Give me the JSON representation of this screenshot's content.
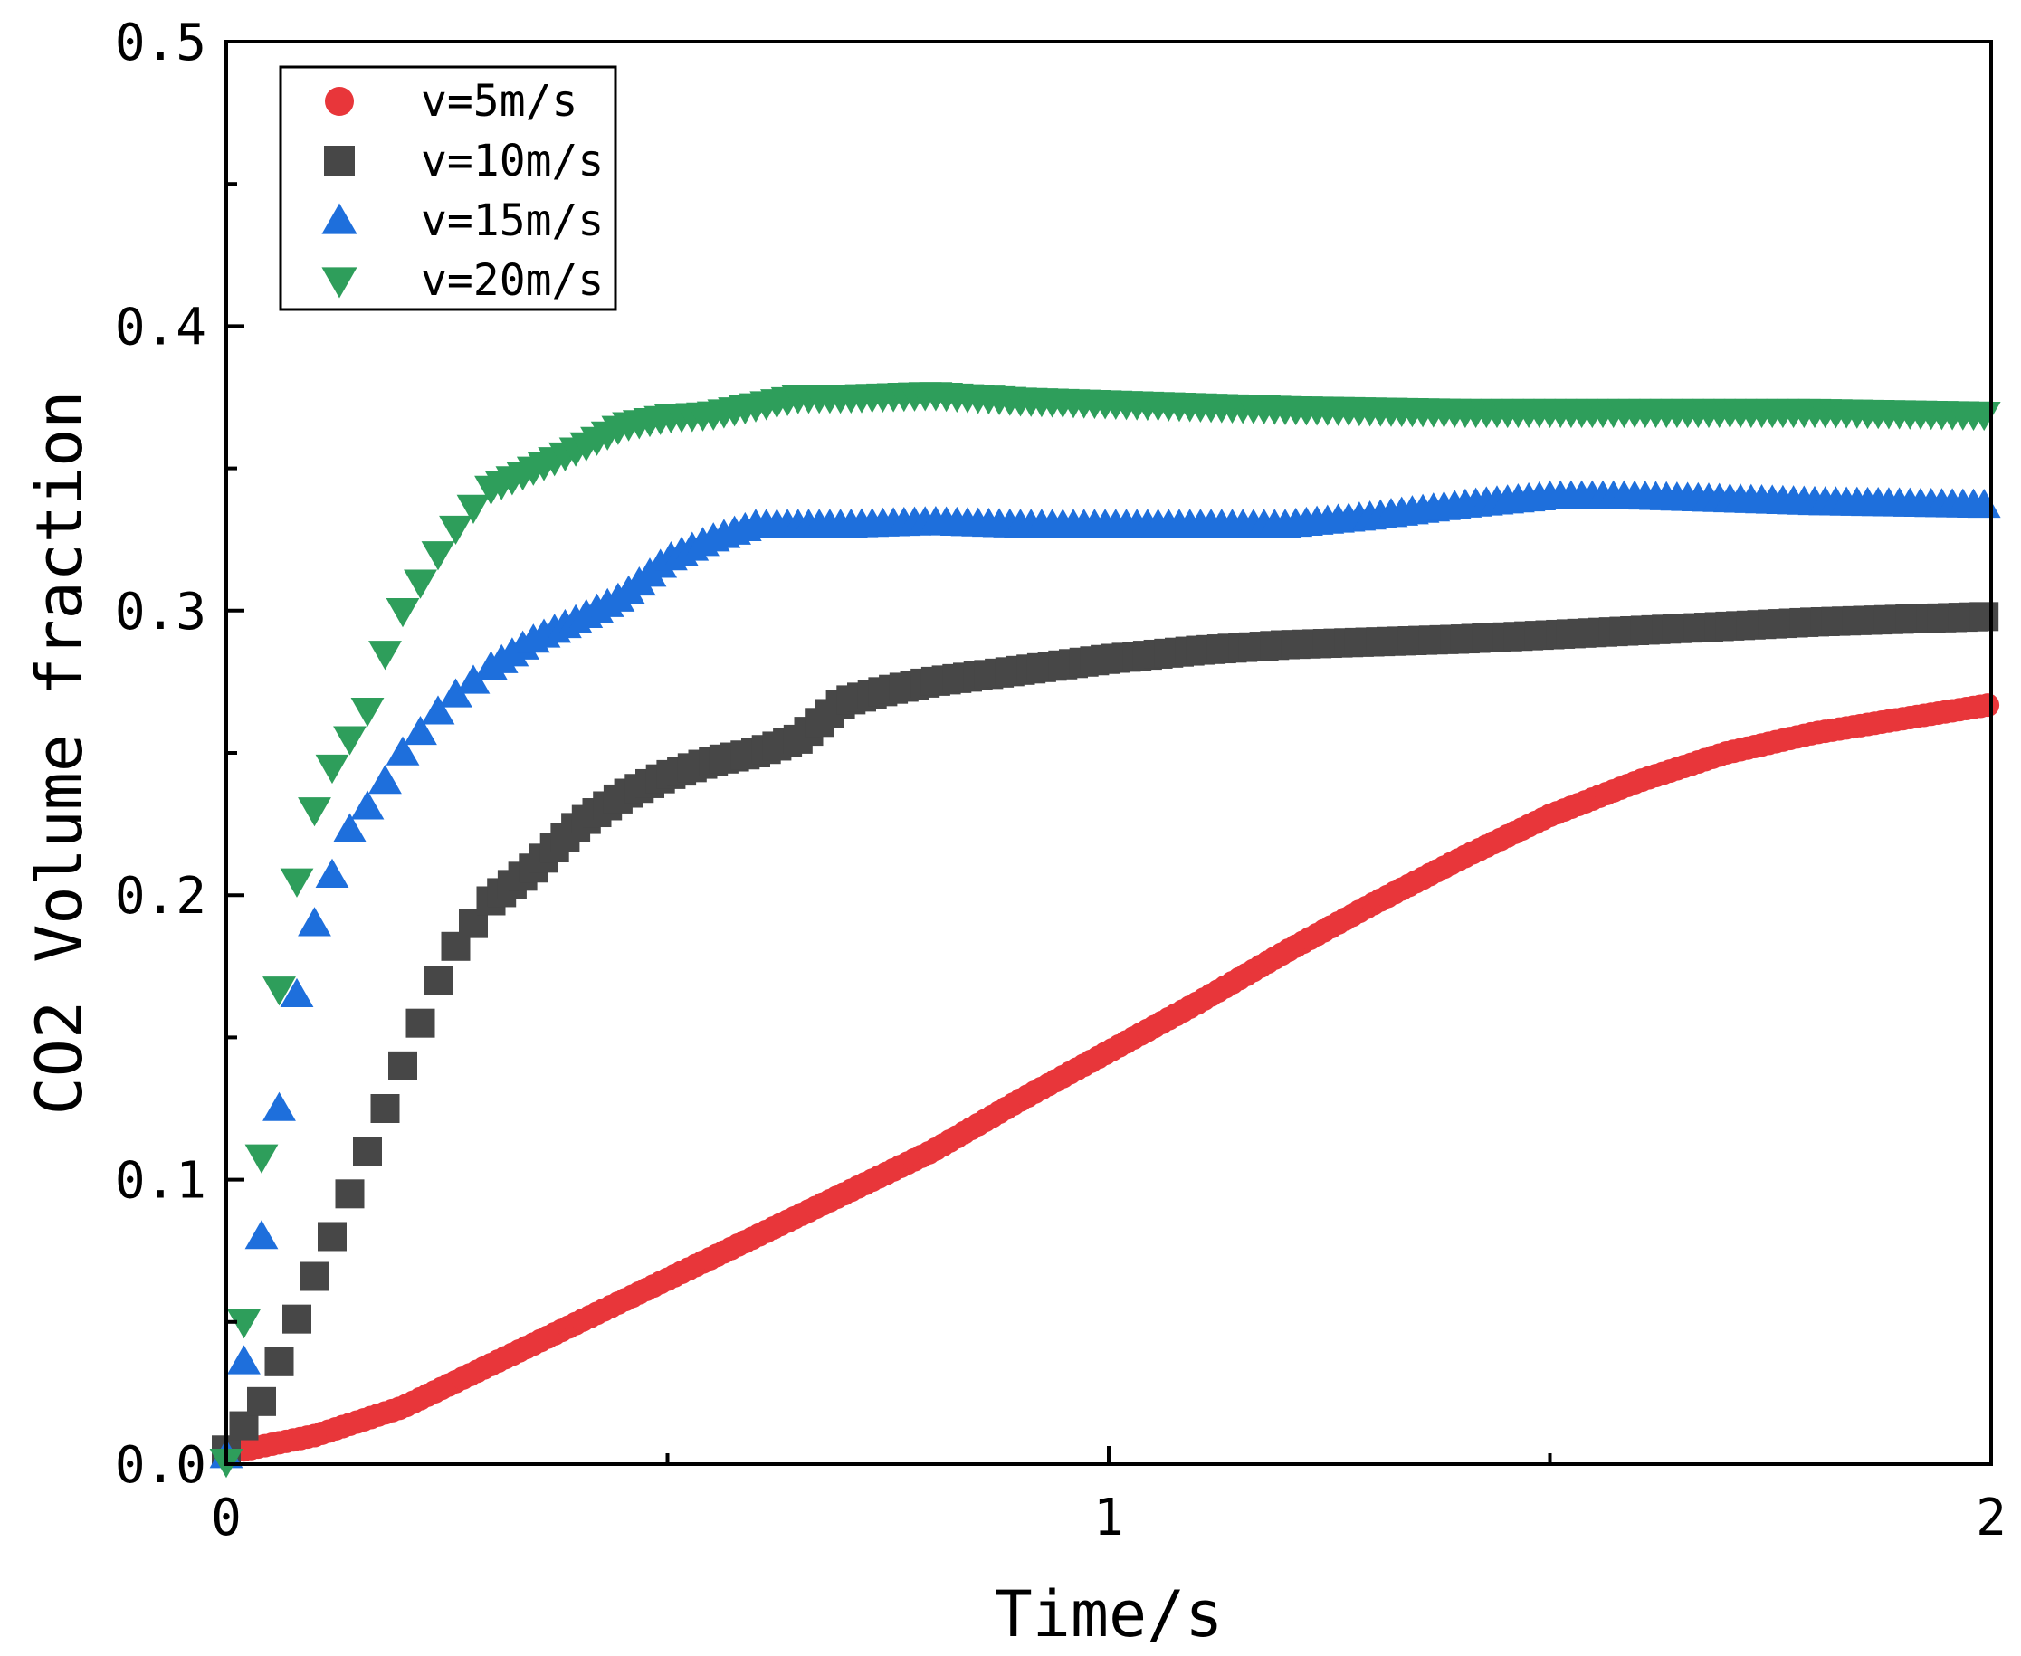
{
  "chart_data": {
    "type": "scatter",
    "title": "",
    "xlabel": "Time/s",
    "ylabel": "CO2 Volume fraction",
    "xlim": [
      0,
      2
    ],
    "ylim": [
      0,
      0.5
    ],
    "x_ticks": [
      {
        "value": 0,
        "label": "0"
      },
      {
        "value": 1,
        "label": "1"
      },
      {
        "value": 2,
        "label": "2"
      }
    ],
    "x_minor_ticks": [
      0.5,
      1.5
    ],
    "y_ticks": [
      {
        "value": 0.0,
        "label": "0.0"
      },
      {
        "value": 0.1,
        "label": "0.1"
      },
      {
        "value": 0.2,
        "label": "0.2"
      },
      {
        "value": 0.3,
        "label": "0.3"
      },
      {
        "value": 0.4,
        "label": "0.4"
      },
      {
        "value": 0.5,
        "label": "0.5"
      }
    ],
    "y_minor_ticks": [
      0.05,
      0.15,
      0.25,
      0.35,
      0.45
    ],
    "grid": false,
    "legend_position": "top-left",
    "series": [
      {
        "name": "v=5m/s",
        "marker": "circle",
        "color": "#e8363a",
        "keypoints": [
          [
            0.02,
            0.005
          ],
          [
            0.1,
            0.01
          ],
          [
            0.2,
            0.02
          ],
          [
            0.3,
            0.035
          ],
          [
            0.4,
            0.05
          ],
          [
            0.5,
            0.065
          ],
          [
            0.6,
            0.08
          ],
          [
            0.7,
            0.095
          ],
          [
            0.8,
            0.11
          ],
          [
            0.9,
            0.128
          ],
          [
            1.0,
            0.145
          ],
          [
            1.1,
            0.162
          ],
          [
            1.2,
            0.18
          ],
          [
            1.3,
            0.197
          ],
          [
            1.4,
            0.213
          ],
          [
            1.5,
            0.228
          ],
          [
            1.6,
            0.24
          ],
          [
            1.7,
            0.25
          ],
          [
            1.8,
            0.257
          ],
          [
            1.9,
            0.262
          ],
          [
            2.0,
            0.267
          ]
        ]
      },
      {
        "name": "v=10m/s",
        "marker": "square",
        "color": "#474747",
        "keypoints": [
          [
            0.0,
            0.005
          ],
          [
            0.04,
            0.022
          ],
          [
            0.06,
            0.036
          ],
          [
            0.08,
            0.051
          ],
          [
            0.1,
            0.066
          ],
          [
            0.12,
            0.08
          ],
          [
            0.14,
            0.095
          ],
          [
            0.16,
            0.11
          ],
          [
            0.18,
            0.125
          ],
          [
            0.2,
            0.14
          ],
          [
            0.22,
            0.155
          ],
          [
            0.24,
            0.17
          ],
          [
            0.26,
            0.182
          ],
          [
            0.28,
            0.19
          ],
          [
            0.3,
            0.198
          ],
          [
            0.35,
            0.21
          ],
          [
            0.4,
            0.225
          ],
          [
            0.45,
            0.235
          ],
          [
            0.5,
            0.242
          ],
          [
            0.55,
            0.247
          ],
          [
            0.6,
            0.25
          ],
          [
            0.65,
            0.255
          ],
          [
            0.7,
            0.268
          ],
          [
            0.75,
            0.272
          ],
          [
            0.8,
            0.275
          ],
          [
            0.9,
            0.279
          ],
          [
            1.0,
            0.283
          ],
          [
            1.1,
            0.286
          ],
          [
            1.2,
            0.288
          ],
          [
            1.4,
            0.29
          ],
          [
            1.6,
            0.293
          ],
          [
            1.8,
            0.296
          ],
          [
            2.0,
            0.298
          ]
        ]
      },
      {
        "name": "v=15m/s",
        "marker": "triangle-up",
        "color": "#1e6fdc",
        "keypoints": [
          [
            0.0,
            0.003
          ],
          [
            0.02,
            0.036
          ],
          [
            0.04,
            0.08
          ],
          [
            0.06,
            0.125
          ],
          [
            0.08,
            0.165
          ],
          [
            0.1,
            0.19
          ],
          [
            0.12,
            0.207
          ],
          [
            0.14,
            0.223
          ],
          [
            0.17,
            0.235
          ],
          [
            0.2,
            0.25
          ],
          [
            0.25,
            0.268
          ],
          [
            0.3,
            0.28
          ],
          [
            0.35,
            0.29
          ],
          [
            0.4,
            0.297
          ],
          [
            0.45,
            0.305
          ],
          [
            0.5,
            0.318
          ],
          [
            0.55,
            0.325
          ],
          [
            0.6,
            0.33
          ],
          [
            0.7,
            0.33
          ],
          [
            0.8,
            0.331
          ],
          [
            0.9,
            0.33
          ],
          [
            1.0,
            0.33
          ],
          [
            1.1,
            0.33
          ],
          [
            1.2,
            0.33
          ],
          [
            1.3,
            0.333
          ],
          [
            1.4,
            0.337
          ],
          [
            1.5,
            0.34
          ],
          [
            1.6,
            0.34
          ],
          [
            1.7,
            0.339
          ],
          [
            1.8,
            0.338
          ],
          [
            2.0,
            0.337
          ]
        ]
      },
      {
        "name": "v=20m/s",
        "marker": "triangle-down",
        "color": "#2e9e5b",
        "keypoints": [
          [
            0.0,
            0.001
          ],
          [
            0.02,
            0.05
          ],
          [
            0.04,
            0.108
          ],
          [
            0.06,
            0.167
          ],
          [
            0.08,
            0.205
          ],
          [
            0.1,
            0.23
          ],
          [
            0.12,
            0.245
          ],
          [
            0.14,
            0.255
          ],
          [
            0.16,
            0.265
          ],
          [
            0.18,
            0.285
          ],
          [
            0.2,
            0.3
          ],
          [
            0.22,
            0.31
          ],
          [
            0.25,
            0.325
          ],
          [
            0.27,
            0.333
          ],
          [
            0.3,
            0.343
          ],
          [
            0.35,
            0.35
          ],
          [
            0.4,
            0.357
          ],
          [
            0.45,
            0.365
          ],
          [
            0.5,
            0.368
          ],
          [
            0.55,
            0.369
          ],
          [
            0.6,
            0.372
          ],
          [
            0.65,
            0.375
          ],
          [
            0.7,
            0.375
          ],
          [
            0.8,
            0.376
          ],
          [
            0.9,
            0.374
          ],
          [
            1.0,
            0.373
          ],
          [
            1.2,
            0.371
          ],
          [
            1.4,
            0.37
          ],
          [
            1.6,
            0.37
          ],
          [
            1.8,
            0.37
          ],
          [
            2.0,
            0.369
          ]
        ]
      }
    ]
  }
}
